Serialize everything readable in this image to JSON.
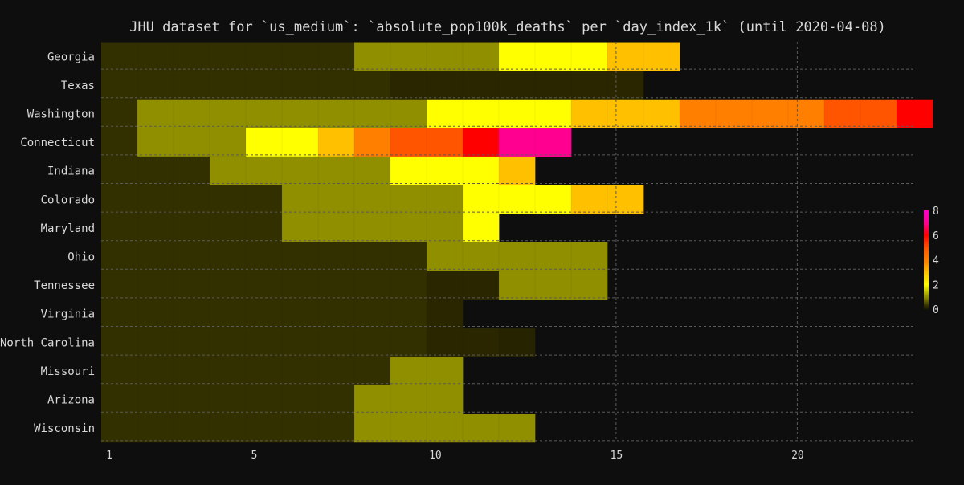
{
  "chart_data": {
    "type": "heatmap",
    "title": "JHU dataset for `us_medium`: `absolute_pop100k_deaths` per `day_index_1k` (until 2020-04-08)",
    "xlabel": "",
    "ylabel": "",
    "x_range": [
      1,
      23
    ],
    "x_ticks": [
      1,
      5,
      10,
      15,
      20
    ],
    "grid": true,
    "colorbar": {
      "ticks": [
        0,
        2,
        4,
        6,
        8
      ],
      "range": [
        0,
        8
      ],
      "placement": "right",
      "stops": [
        {
          "v": 0,
          "color": "#191500"
        },
        {
          "v": 0.3,
          "color": "#333000"
        },
        {
          "v": 1.0,
          "color": "#908f00"
        },
        {
          "v": 2.0,
          "color": "#ffff00"
        },
        {
          "v": 3.0,
          "color": "#ffc000"
        },
        {
          "v": 4.0,
          "color": "#ff7f00"
        },
        {
          "v": 5.0,
          "color": "#ff5500"
        },
        {
          "v": 6.0,
          "color": "#ff0000"
        },
        {
          "v": 7.0,
          "color": "#ff0090"
        },
        {
          "v": 8.0,
          "color": "#ff00cc"
        }
      ]
    },
    "states": [
      "Georgia",
      "Texas",
      "Washington",
      "Connecticut",
      "Indiana",
      "Colorado",
      "Maryland",
      "Ohio",
      "Tennessee",
      "Virginia",
      "North Carolina",
      "Missouri",
      "Arizona",
      "Wisconsin"
    ],
    "values": [
      [
        0.3,
        0.3,
        0.3,
        0.3,
        0.3,
        0.3,
        0.3,
        1,
        1,
        1,
        1,
        2,
        2,
        2,
        3,
        3
      ],
      [
        0.3,
        0.3,
        0.3,
        0.3,
        0.3,
        0.3,
        0.3,
        0.3,
        0.2,
        0.2,
        0.2,
        0.2,
        0.2,
        0.2,
        0.2
      ],
      [
        0.3,
        1,
        1,
        1,
        1,
        1,
        1,
        1,
        1,
        2,
        2,
        2,
        2,
        3,
        3,
        3,
        4,
        4,
        4,
        4,
        5,
        5,
        6
      ],
      [
        0.3,
        1,
        1,
        1,
        2,
        2,
        3,
        4,
        5,
        5,
        6,
        7,
        7
      ],
      [
        0.3,
        0.3,
        0.3,
        1,
        1,
        1,
        1,
        1,
        2,
        2,
        2,
        3
      ],
      [
        0.3,
        0.3,
        0.3,
        0.3,
        0.3,
        1,
        1,
        1,
        1,
        1,
        2,
        2,
        2,
        3,
        3
      ],
      [
        0.3,
        0.3,
        0.3,
        0.3,
        0.3,
        1,
        1,
        1,
        1,
        1,
        2
      ],
      [
        0.3,
        0.3,
        0.3,
        0.3,
        0.3,
        0.3,
        0.3,
        0.3,
        0.3,
        1,
        1,
        1,
        1,
        1
      ],
      [
        0.3,
        0.3,
        0.3,
        0.3,
        0.3,
        0.3,
        0.3,
        0.3,
        0.3,
        0.2,
        0.2,
        1,
        1,
        1
      ],
      [
        0.3,
        0.3,
        0.3,
        0.3,
        0.3,
        0.3,
        0.3,
        0.3,
        0.3,
        0.2
      ],
      [
        0.3,
        0.3,
        0.3,
        0.3,
        0.3,
        0.3,
        0.3,
        0.3,
        0.3,
        0.2,
        0.2,
        0.15
      ],
      [
        0.3,
        0.3,
        0.3,
        0.3,
        0.3,
        0.3,
        0.3,
        0.3,
        1,
        1
      ],
      [
        0.3,
        0.3,
        0.3,
        0.3,
        0.3,
        0.3,
        0.3,
        1,
        1,
        1
      ],
      [
        0.3,
        0.3,
        0.3,
        0.3,
        0.3,
        0.3,
        0.3,
        1,
        1,
        1,
        1,
        1
      ]
    ]
  }
}
